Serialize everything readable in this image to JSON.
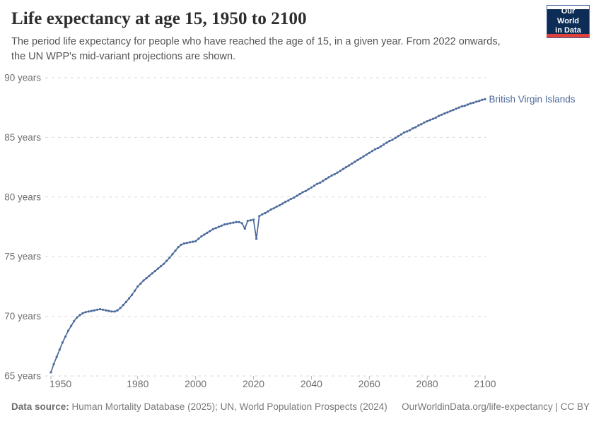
{
  "header": {
    "title": "Life expectancy at age 15, 1950 to 2100",
    "subtitle": "The period life expectancy for people who have reached the age of 15, in a given year. From 2022 onwards,\nthe UN WPP's mid-variant projections are shown.",
    "logo": {
      "line1": "Our World",
      "line2": "in Data"
    }
  },
  "chart_data": {
    "type": "line",
    "title": "Life expectancy at age 15, 1950 to 2100",
    "xlabel": "",
    "ylabel": "",
    "xlim": [
      1950,
      2100
    ],
    "ylim": [
      65,
      90
    ],
    "x_ticks": [
      1950,
      1980,
      2000,
      2020,
      2040,
      2060,
      2080,
      2100
    ],
    "y_ticks": [
      65,
      70,
      75,
      80,
      85,
      90
    ],
    "y_tick_suffix": " years",
    "grid": "horizontal-dashed",
    "legend_position": "end-of-line-label",
    "projection_note": "values from 2022 onwards are UN WPP mid-variant projections",
    "series": [
      {
        "name": "British Virgin Islands",
        "color": "#4C6A9C",
        "year_start": 1950,
        "year_step": 1,
        "values": [
          65.3,
          66.0,
          66.6,
          67.2,
          67.8,
          68.3,
          68.8,
          69.2,
          69.6,
          69.9,
          70.1,
          70.25,
          70.35,
          70.4,
          70.45,
          70.5,
          70.55,
          70.6,
          70.55,
          70.5,
          70.45,
          70.4,
          70.4,
          70.5,
          70.7,
          70.95,
          71.2,
          71.5,
          71.8,
          72.15,
          72.5,
          72.75,
          73.0,
          73.2,
          73.4,
          73.6,
          73.8,
          74.0,
          74.2,
          74.4,
          74.65,
          74.9,
          75.2,
          75.5,
          75.8,
          76.0,
          76.1,
          76.15,
          76.2,
          76.25,
          76.3,
          76.5,
          76.7,
          76.85,
          77.0,
          77.15,
          77.3,
          77.4,
          77.5,
          77.6,
          77.7,
          77.75,
          77.8,
          77.85,
          77.9,
          77.9,
          77.8,
          77.35,
          78.0,
          78.05,
          78.1,
          76.5,
          78.4,
          78.55,
          78.65,
          78.8,
          78.95,
          79.05,
          79.2,
          79.3,
          79.45,
          79.6,
          79.7,
          79.85,
          79.95,
          80.1,
          80.25,
          80.4,
          80.5,
          80.65,
          80.8,
          80.95,
          81.1,
          81.2,
          81.35,
          81.5,
          81.65,
          81.8,
          81.9,
          82.05,
          82.2,
          82.35,
          82.5,
          82.65,
          82.8,
          82.95,
          83.1,
          83.25,
          83.4,
          83.55,
          83.7,
          83.85,
          84.0,
          84.1,
          84.25,
          84.4,
          84.55,
          84.7,
          84.8,
          84.95,
          85.1,
          85.25,
          85.4,
          85.5,
          85.6,
          85.75,
          85.85,
          86.0,
          86.1,
          86.25,
          86.35,
          86.45,
          86.55,
          86.65,
          86.8,
          86.9,
          87.0,
          87.1,
          87.2,
          87.3,
          87.4,
          87.5,
          87.6,
          87.65,
          87.75,
          87.85,
          87.9,
          88.0,
          88.05,
          88.15,
          88.2
        ]
      }
    ]
  },
  "footer": {
    "source_label": "Data source:",
    "source_text": " Human Mortality Database (2025); UN, World Population Prospects (2024)",
    "link_text": "OurWorldinData.org/life-expectancy | CC BY"
  },
  "colors": {
    "series_blue": "#4C6A9C",
    "grid": "#dadada",
    "tick": "#b5b5b5",
    "axis_text": "#6e6e6e",
    "logo_bg": "#0d2c56",
    "logo_stripe": "#e0413b"
  }
}
